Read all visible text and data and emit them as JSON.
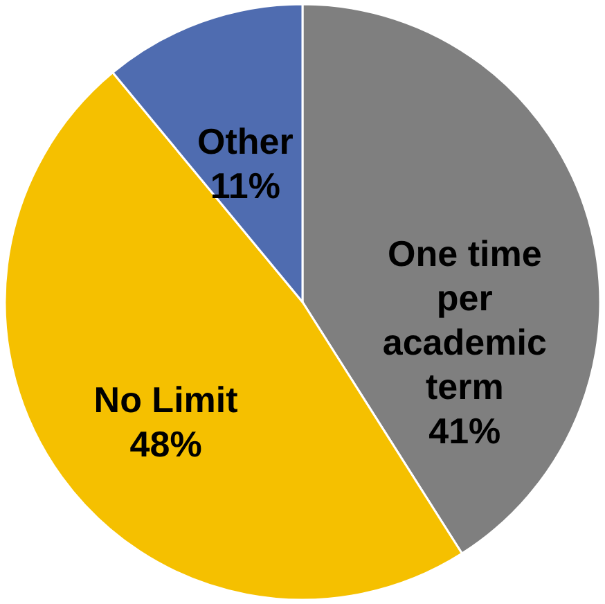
{
  "chart_data": {
    "type": "pie",
    "categories": [
      "One time per academic term",
      "No Limit",
      "Other"
    ],
    "values": [
      41,
      48,
      11
    ],
    "colors": [
      "#7f7f7f",
      "#f5c000",
      "#4f6cb0"
    ],
    "value_labels": [
      "41%",
      "48%",
      "11%"
    ]
  }
}
